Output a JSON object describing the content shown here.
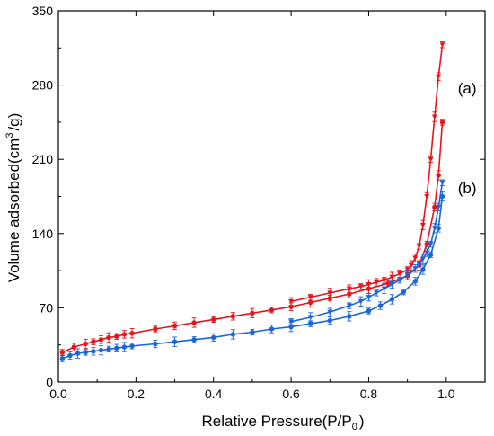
{
  "chart_data": {
    "type": "line",
    "xlabel": "Relative Pressure(P/P",
    "xlabel_sub": "0",
    "xlabel_end": ")",
    "ylabel": "Volume adsorbed(cm",
    "ylabel_sup": "3",
    "ylabel_end": "/g)",
    "xlim": [
      0.0,
      1.1
    ],
    "ylim": [
      0,
      350
    ],
    "xticks": [
      0.0,
      0.2,
      0.4,
      0.6,
      0.8,
      1.0
    ],
    "xtick_labels": [
      "0.0",
      "0.2",
      "0.4",
      "0.6",
      "0.8",
      "1.0"
    ],
    "yticks": [
      0,
      70,
      140,
      210,
      280,
      350
    ],
    "ytick_labels": [
      "0",
      "70",
      "140",
      "210",
      "280",
      "350"
    ],
    "grid": false,
    "colors": {
      "a": "#e8141c",
      "b": "#1a66d8"
    },
    "series": [
      {
        "name": "(a)",
        "branch": "adsorption",
        "x": [
          0.01,
          0.04,
          0.07,
          0.09,
          0.11,
          0.13,
          0.15,
          0.17,
          0.19,
          0.25,
          0.3,
          0.35,
          0.4,
          0.45,
          0.5,
          0.55,
          0.6,
          0.65,
          0.7,
          0.75,
          0.8,
          0.85,
          0.9,
          0.93,
          0.95,
          0.97,
          0.98,
          0.99
        ],
        "y": [
          28,
          33,
          36,
          38,
          40,
          42,
          43,
          45,
          46,
          50,
          53,
          56,
          59,
          62,
          65,
          68,
          71,
          75,
          79,
          83,
          88,
          93,
          100,
          110,
          130,
          165,
          195,
          245
        ]
      },
      {
        "name": "(a)",
        "branch": "desorption",
        "x": [
          0.99,
          0.98,
          0.97,
          0.96,
          0.95,
          0.94,
          0.93,
          0.92,
          0.91,
          0.9,
          0.88,
          0.86,
          0.84,
          0.82,
          0.8,
          0.78,
          0.75,
          0.7,
          0.65,
          0.6
        ],
        "y": [
          318,
          288,
          250,
          210,
          175,
          148,
          128,
          117,
          110,
          106,
          102,
          99,
          96,
          94,
          92,
          90,
          88,
          84,
          80,
          76
        ]
      },
      {
        "name": "(b)",
        "branch": "adsorption",
        "x": [
          0.01,
          0.03,
          0.05,
          0.07,
          0.09,
          0.11,
          0.13,
          0.15,
          0.17,
          0.19,
          0.25,
          0.3,
          0.35,
          0.4,
          0.45,
          0.5,
          0.55,
          0.6,
          0.65,
          0.7,
          0.75,
          0.8,
          0.83,
          0.86,
          0.89,
          0.92,
          0.94,
          0.96,
          0.98,
          0.99
        ],
        "y": [
          22,
          25,
          27,
          28,
          29,
          30,
          31,
          32,
          33,
          34,
          36,
          38,
          40,
          42,
          45,
          47,
          50,
          52,
          55,
          58,
          62,
          67,
          72,
          78,
          85,
          95,
          106,
          120,
          145,
          175
        ]
      },
      {
        "name": "(b)",
        "branch": "desorption",
        "x": [
          0.99,
          0.98,
          0.97,
          0.96,
          0.95,
          0.94,
          0.93,
          0.92,
          0.9,
          0.88,
          0.86,
          0.84,
          0.82,
          0.8,
          0.78,
          0.75,
          0.7,
          0.65,
          0.6
        ],
        "y": [
          188,
          165,
          145,
          130,
          122,
          116,
          111,
          107,
          101,
          96,
          92,
          88,
          84,
          80,
          76,
          72,
          66,
          61,
          57
        ]
      }
    ],
    "annotations": [
      {
        "text": "(a)",
        "x": 1.03,
        "y": 272
      },
      {
        "text": "(b)",
        "x": 1.03,
        "y": 178
      }
    ]
  }
}
